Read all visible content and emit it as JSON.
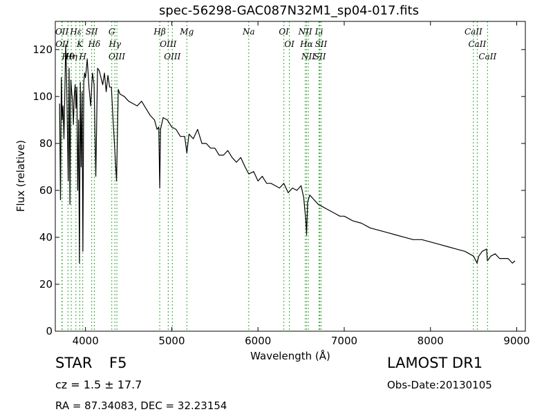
{
  "title": "spec-56298-GAC087N32M1_sp04-017.fits",
  "info": {
    "class": "STAR",
    "subclass": "F5",
    "cz": "cz = 1.5 ± 17.7",
    "coords": "RA = 87.34083, DEC = 32.23154",
    "survey": "LAMOST DR1",
    "obs_date": "Obs-Date:20130105"
  },
  "colors": {
    "spectrum": "#000000",
    "lines": "#2ca02c"
  },
  "chart_data": {
    "type": "line",
    "title": "spec-56298-GAC087N32M1_sp04-017.fits",
    "xlabel": "Wavelength (Å)",
    "ylabel": "Flux (relative)",
    "xlim": [
      3650,
      9100
    ],
    "ylim": [
      0,
      132
    ],
    "xticks": [
      4000,
      5000,
      6000,
      7000,
      8000,
      9000
    ],
    "xtick_labels": [
      "4000",
      "5000",
      "6000",
      "7000",
      "8000",
      "9000"
    ],
    "yticks": [
      0,
      20,
      40,
      60,
      80,
      100,
      120
    ],
    "ytick_labels": [
      "0",
      "20",
      "40",
      "60",
      "80",
      "100",
      "120"
    ],
    "grid": false,
    "series": [
      {
        "x": [
          3700,
          3710,
          3720,
          3730,
          3740,
          3750,
          3760,
          3770,
          3780,
          3790,
          3800,
          3810,
          3820,
          3830,
          3840,
          3850,
          3860,
          3870,
          3880,
          3890,
          3900,
          3910,
          3920,
          3930,
          3940,
          3950,
          3960,
          3970,
          3980,
          3990,
          4000,
          4020,
          4040,
          4060,
          4080,
          4100,
          4120,
          4140,
          4160,
          4180,
          4200,
          4220,
          4240,
          4260,
          4280,
          4300,
          4320,
          4340,
          4360,
          4380,
          4400,
          4450,
          4500,
          4550,
          4600,
          4650,
          4700,
          4750,
          4800,
          4830,
          4850,
          4861,
          4870,
          4900,
          4950,
          5000,
          5050,
          5100,
          5150,
          5175,
          5200,
          5250,
          5300,
          5350,
          5400,
          5450,
          5500,
          5550,
          5600,
          5650,
          5700,
          5750,
          5800,
          5850,
          5893,
          5950,
          6000,
          6050,
          6100,
          6150,
          6200,
          6250,
          6300,
          6350,
          6400,
          6450,
          6500,
          6530,
          6555,
          6563,
          6575,
          6600,
          6650,
          6700,
          6750,
          6800,
          6850,
          6900,
          6950,
          7000,
          7100,
          7200,
          7300,
          7400,
          7500,
          7600,
          7700,
          7800,
          7900,
          8000,
          8100,
          8200,
          8300,
          8400,
          8450,
          8500,
          8540,
          8560,
          8600,
          8650,
          8660,
          8700,
          8750,
          8800,
          8850,
          8900,
          8950,
          8980
        ],
        "y": [
          97,
          56,
          108,
          90,
          96,
          82,
          100,
          122,
          110,
          86,
          64,
          112,
          54,
          107,
          102,
          98,
          88,
          100,
          105,
          95,
          104,
          60,
          90,
          29,
          106,
          70,
          102,
          34,
          106,
          110,
          108,
          116,
          104,
          96,
          110,
          105,
          66,
          112,
          111,
          108,
          105,
          110,
          102,
          109,
          104,
          104,
          90,
          77,
          64,
          103,
          101,
          100,
          98,
          97,
          96,
          98,
          95,
          92,
          90,
          86,
          87,
          61,
          86,
          91,
          90,
          87,
          86,
          83,
          83,
          76,
          84,
          82,
          86,
          80,
          80,
          78,
          78,
          75,
          75,
          77,
          74,
          72,
          74,
          70,
          67,
          68,
          64,
          66,
          63,
          63,
          62,
          61,
          63,
          59,
          61,
          60,
          62,
          57,
          47,
          41,
          55,
          58,
          56,
          54,
          53,
          52,
          51,
          50,
          49,
          49,
          47,
          46,
          44,
          43,
          42,
          41,
          40,
          39,
          39,
          38,
          37,
          36,
          35,
          34,
          33,
          32,
          29,
          32,
          34,
          35,
          30,
          32,
          33,
          31,
          31,
          31,
          29,
          30
        ]
      }
    ],
    "annotations": [
      {
        "text": "Hθ",
        "x": 3797
      },
      {
        "text": "OII",
        "x": 3727
      },
      {
        "text": "OII",
        "x": 3729
      },
      {
        "text": "Hη",
        "x": 3835
      },
      {
        "text": "Hε",
        "x": 3889
      },
      {
        "text": "K",
        "x": 3934
      },
      {
        "text": "H",
        "x": 3968
      },
      {
        "text": "SII",
        "x": 4072
      },
      {
        "text": "Hδ",
        "x": 4102
      },
      {
        "text": "OIII",
        "x": 4364
      },
      {
        "text": "Hγ",
        "x": 4341
      },
      {
        "text": "G",
        "x": 4305
      },
      {
        "text": "OIII",
        "x": 5007
      },
      {
        "text": "OIII",
        "x": 4959
      },
      {
        "text": "Hβ",
        "x": 4861
      },
      {
        "text": "Mg",
        "x": 5175
      },
      {
        "text": "Na",
        "x": 5893
      },
      {
        "text": "OI",
        "x": 6300
      },
      {
        "text": "OI",
        "x": 6364
      },
      {
        "text": "NII",
        "x": 6548
      },
      {
        "text": "NII",
        "x": 6583
      },
      {
        "text": "Hα",
        "x": 6563
      },
      {
        "text": "SII",
        "x": 6717
      },
      {
        "text": "SII",
        "x": 6731
      },
      {
        "text": "Li",
        "x": 6708
      },
      {
        "text": "CaII",
        "x": 8498
      },
      {
        "text": "CaII",
        "x": 8542
      },
      {
        "text": "CaII",
        "x": 8662
      }
    ]
  }
}
